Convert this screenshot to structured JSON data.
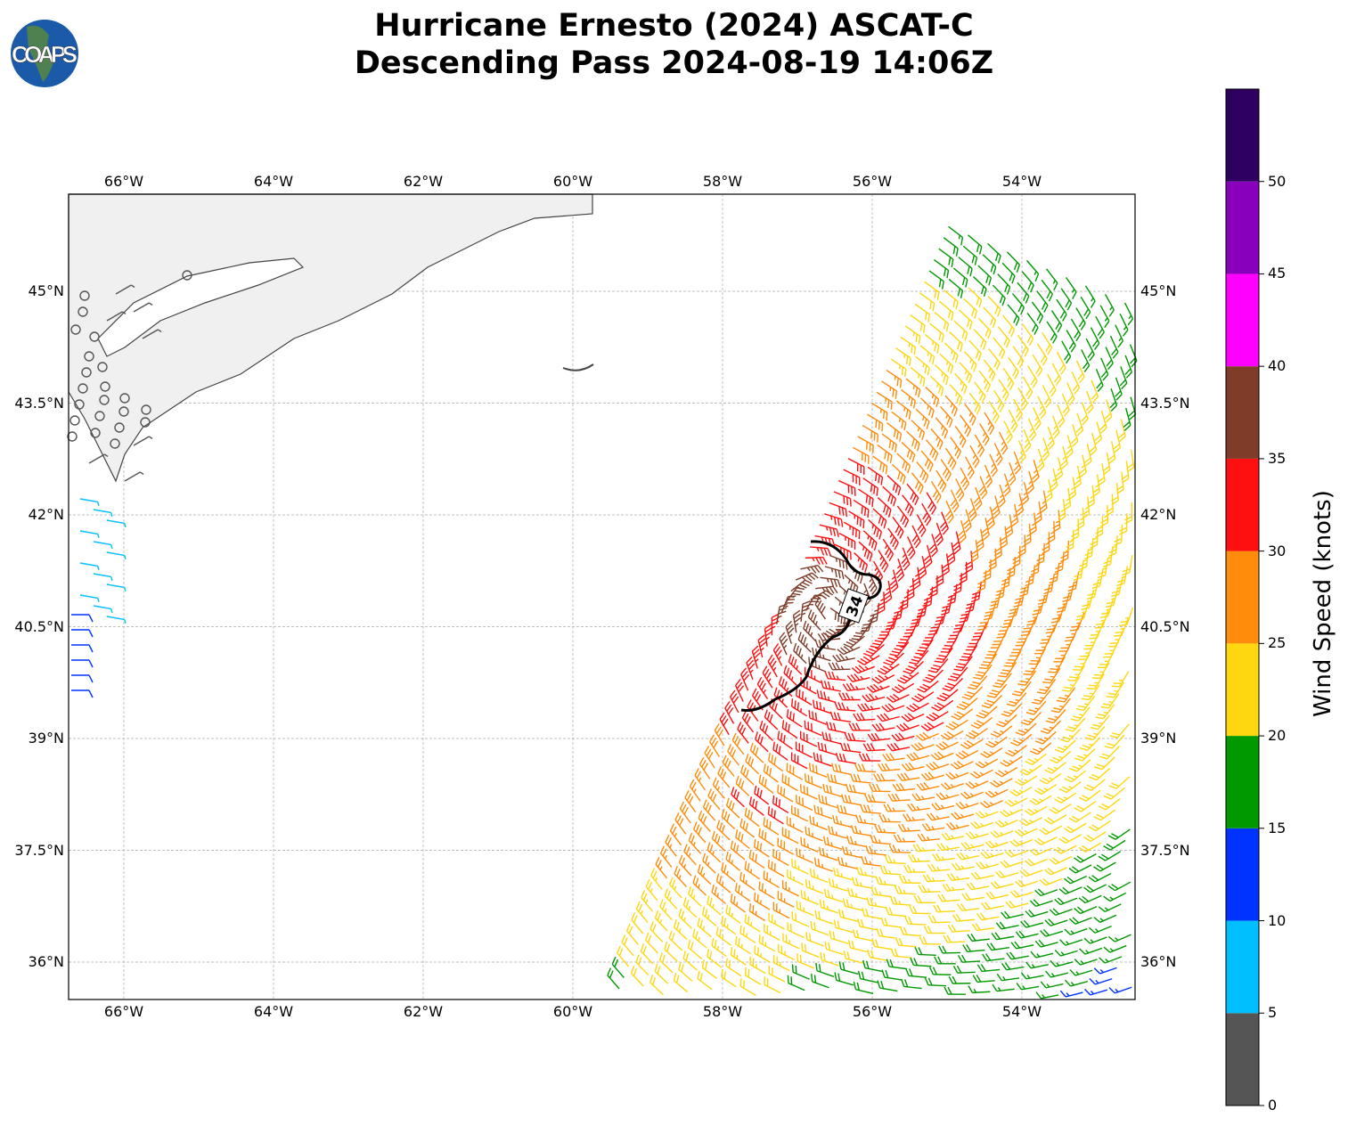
{
  "title": {
    "line1": "Hurricane Ernesto (2024) ASCAT-C",
    "line2": "Descending Pass 2024-08-19 14:06Z"
  },
  "logo": {
    "text": "COAPS"
  },
  "map": {
    "lon_ticks": [
      "66°W",
      "64°W",
      "62°W",
      "60°W",
      "58°W",
      "56°W",
      "54°W"
    ],
    "lat_ticks": [
      "45°N",
      "43.5°N",
      "42°N",
      "40.5°N",
      "39°N",
      "37.5°N",
      "36°N"
    ],
    "contour_label": "34"
  },
  "colorbar": {
    "label": "Wind Speed (knots)",
    "ticks": [
      "0",
      "5",
      "10",
      "15",
      "20",
      "25",
      "30",
      "35",
      "40",
      "45",
      "50"
    ],
    "colors": [
      "#555555",
      "#00bfff",
      "#0033ff",
      "#009900",
      "#ffd710",
      "#ff8c0a",
      "#ff1010",
      "#7f3c28",
      "#ff00ff",
      "#8800bb",
      "#2e0060"
    ]
  }
}
